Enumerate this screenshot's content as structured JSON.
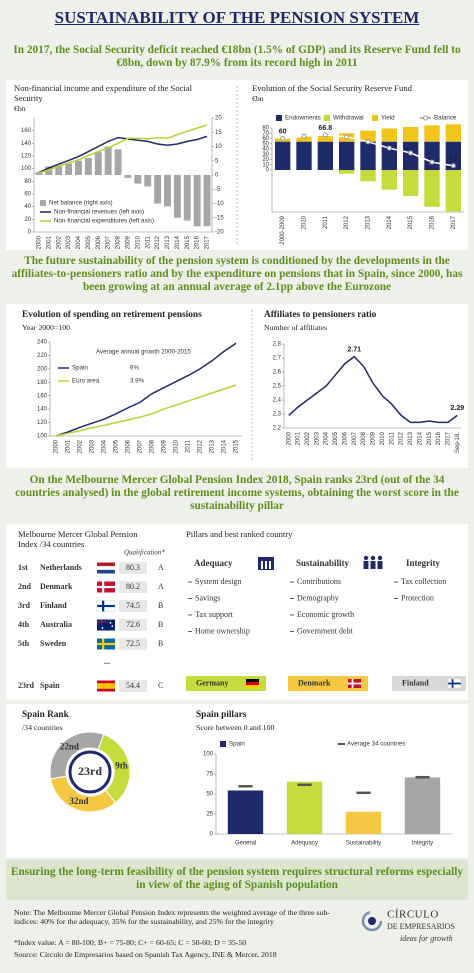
{
  "title": "SUSTAINABILITY OF THE PENSION SYSTEM",
  "intro": "In 2017, the Social Security deficit reached €18bn (1.5% of GDP) and its Reserve Fund fell to €8bn, down by 87.9% from its record high in 2011",
  "section_2": "The future sustainability of the pension system is conditioned by the developments in the affiliates-to-pensioners ratio and by the expenditure on pensions that in Spain, since 2000, has been growing at an annual average of 2.1pp above the Eurozone",
  "section_3": "On the Melbourne Mercer Global Pension Index 2018, Spain ranks 23rd (out of the 34 countries analysed) in the global retirement income systems, obtaining the worst score in the sustainability pillar",
  "chart_data": [
    {
      "type": "combo",
      "title": "Non-financial income and expenditure of the Social Security",
      "subtitle": "€bn",
      "categories": [
        "2000",
        "2001",
        "2002",
        "2003",
        "2004",
        "2005",
        "2006",
        "2007",
        "2008",
        "2009",
        "2010",
        "2011",
        "2012",
        "2013",
        "2014",
        "2015",
        "2016",
        "2017"
      ],
      "ylim": [
        0,
        180
      ],
      "yticks": [
        0,
        20,
        40,
        60,
        80,
        100,
        120,
        140,
        160
      ],
      "y2lim": [
        -20,
        20
      ],
      "y2ticks": [
        -20,
        -15,
        -10,
        -5,
        0,
        5,
        10,
        15,
        20
      ],
      "legend": "lower left",
      "series": [
        {
          "name": "Net balance (right axis)",
          "kind": "bar",
          "axis": "y2",
          "color": "#a6a6a6",
          "values": [
            1,
            3,
            3,
            4,
            5,
            6,
            8,
            10,
            9,
            -1,
            -3,
            -4,
            -10,
            -11,
            -15,
            -16,
            -18,
            -18
          ]
        },
        {
          "name": "Non-financial revenues (left axis)",
          "kind": "line",
          "color": "#1f2a6b",
          "values": [
            94,
            101,
            107,
            113,
            119,
            127,
            135,
            143,
            149,
            147,
            145,
            143,
            139,
            137,
            139,
            143,
            146,
            151
          ]
        },
        {
          "name": "Non-financial expenditures (left axis)",
          "kind": "line",
          "color": "#b5d334",
          "values": [
            93,
            98,
            104,
            109,
            114,
            121,
            127,
            133,
            140,
            148,
            148,
            147,
            149,
            148,
            154,
            159,
            164,
            169
          ]
        }
      ]
    },
    {
      "type": "stacked-bar",
      "title": "Evolution of the Social Security Reserve Fund",
      "subtitle": "€bn",
      "categories": [
        "2000-2009",
        "2010",
        "2011",
        "2012",
        "2013",
        "2014",
        "2015",
        "2016",
        "2017"
      ],
      "ylim": [
        -80,
        80
      ],
      "yticks": [
        0,
        10,
        20,
        30,
        40,
        50,
        60,
        70,
        80
      ],
      "legend": "top",
      "series": [
        {
          "name": "Endowments",
          "kind": "bar",
          "color": "#1f2a6b",
          "values": [
            54,
            54,
            54,
            54,
            54,
            54,
            54,
            54,
            54
          ]
        },
        {
          "name": "Withdrawal",
          "kind": "bar",
          "color": "#c6dc3c",
          "values": [
            0,
            0,
            0,
            -7,
            -21.3,
            -37.4,
            -49.5,
            -70,
            -78.9
          ]
        },
        {
          "name": "Yield",
          "kind": "bar",
          "color": "#f0c419",
          "values": [
            6,
            10.4,
            12.8,
            16,
            21,
            25,
            28,
            31,
            33
          ]
        },
        {
          "name": "Balance",
          "kind": "line",
          "color": "#ffffff",
          "marker_color": "#9a9a9a",
          "values": [
            60,
            64.4,
            66.8,
            63,
            53.7,
            41.6,
            32.5,
            15,
            8.1
          ],
          "value_labels": [
            "60",
            null,
            "66.8",
            null,
            null,
            null,
            null,
            null,
            "8.1"
          ]
        }
      ]
    },
    {
      "type": "line",
      "title": "Evolution of spending on retirement pensions",
      "subtitle": "Year 2000=100",
      "categories": [
        "2000",
        "2001",
        "2002",
        "2003",
        "2004",
        "2005",
        "2006",
        "2007",
        "2008",
        "2009",
        "2010",
        "2011",
        "2012",
        "2013",
        "2014",
        "2015"
      ],
      "ylim": [
        100,
        240
      ],
      "yticks": [
        100,
        120,
        140,
        160,
        180,
        200,
        220,
        240
      ],
      "grid": false,
      "legend": "upper left",
      "legend_title": "Average annual growth 2000-2015",
      "series": [
        {
          "name": "Spain",
          "kind": "line",
          "color": "#1f2a6b",
          "growth": "6%",
          "values": [
            100,
            106,
            113,
            119,
            125,
            133,
            142,
            150,
            163,
            172,
            181,
            190,
            200,
            212,
            226,
            238
          ]
        },
        {
          "name": "Euro area",
          "kind": "line",
          "color": "#b5d334",
          "growth": "3.9%",
          "values": [
            100,
            104,
            108,
            112,
            116,
            120,
            124,
            128,
            133,
            140,
            146,
            152,
            158,
            164,
            170,
            176
          ]
        }
      ]
    },
    {
      "type": "line",
      "title": "Affiliates to pensioners ratio",
      "subtitle": "Number of affiliates",
      "categories": [
        "2000",
        "2001",
        "2002",
        "2003",
        "2004",
        "2005",
        "2006",
        "2007",
        "2008",
        "2009",
        "2010",
        "2011",
        "2012",
        "2013",
        "2014",
        "2015",
        "2016",
        "2017",
        "Sep-18."
      ],
      "ylim": [
        2.2,
        2.8
      ],
      "yticks": [
        {
          "value": 2.2,
          "label": "2,2"
        },
        {
          "value": 2.3,
          "label": "2,3"
        },
        {
          "value": 2.4,
          "label": "2,4"
        },
        {
          "value": 2.5,
          "label": "2,5"
        },
        {
          "value": 2.6,
          "label": "2,6"
        },
        {
          "value": 2.7,
          "label": "2,7"
        },
        {
          "value": 2.8,
          "label": "2,8"
        }
      ],
      "grid": false,
      "series": [
        {
          "name": "Affiliates to pensioners ratio",
          "kind": "line",
          "color": "#1f2a6b",
          "values": [
            2.29,
            2.35,
            2.4,
            2.45,
            2.5,
            2.58,
            2.66,
            2.71,
            2.64,
            2.52,
            2.43,
            2.37,
            2.29,
            2.24,
            2.24,
            2.25,
            2.24,
            2.24,
            2.29
          ],
          "value_labels": [
            null,
            null,
            null,
            null,
            null,
            null,
            null,
            "2.71",
            null,
            null,
            null,
            null,
            null,
            null,
            null,
            null,
            null,
            null,
            "2.29"
          ]
        }
      ]
    },
    {
      "type": "bar",
      "title": "Spain pillars",
      "subtitle": "Score between 0 and 100",
      "categories": [
        "General",
        "Adequacy",
        "Sustainability",
        "Integrity"
      ],
      "ylim": [
        0,
        100
      ],
      "yticks": [
        0,
        25,
        50,
        75,
        100
      ],
      "legend": "top",
      "series": [
        {
          "name": "Spain",
          "kind": "bar",
          "color": "#1f2a6b",
          "colors": [
            "#1f2a6b",
            "#c6dc3c",
            "#f5c843",
            "#a6a6a6"
          ],
          "values": [
            54.4,
            65.4,
            27.9,
            70.8
          ]
        },
        {
          "name": "Average 34 countries",
          "kind": "marker",
          "color": "#555555",
          "values": [
            59.7,
            61.5,
            51.5,
            71
          ]
        }
      ]
    }
  ],
  "mercer_table": {
    "title": "Melbourne Mercer Global Pension Index /34 countries",
    "qualification_header": "Qualification*",
    "rows": [
      {
        "rank": "1st",
        "country": "Netherlands",
        "score": 80.3,
        "grade": "A"
      },
      {
        "rank": "2nd",
        "country": "Denmark",
        "score": 80.2,
        "grade": "A"
      },
      {
        "rank": "3rd",
        "country": "Finland",
        "score": 74.5,
        "grade": "B"
      },
      {
        "rank": "4th",
        "country": "Australia",
        "score": 72.6,
        "grade": "B"
      },
      {
        "rank": "5th",
        "country": "Sweden",
        "score": 72.5,
        "grade": "B"
      }
    ],
    "ellipsis": "...",
    "spain": {
      "rank": "23rd",
      "country": "Spain",
      "score": 54.4,
      "grade": "C"
    }
  },
  "pillars": {
    "title": "Pillars and best ranked country",
    "columns": [
      {
        "name": "Adequacy",
        "items": [
          "System design",
          "Savings",
          "Tax support",
          "Home ownership"
        ],
        "best": "Germany"
      },
      {
        "name": "Sustainability",
        "items": [
          "Contributions",
          "Demography",
          "Economic growth",
          "Government debt"
        ],
        "best": "Denmark"
      },
      {
        "name": "Integrity",
        "items": [
          "Tax collection",
          "Protection"
        ],
        "best": "Finland"
      }
    ]
  },
  "spain_rank": {
    "title": "Spain Rank",
    "subtitle": "/34 countries",
    "overall": "23rd",
    "pillars": [
      "9th",
      "32nd",
      "22nd"
    ]
  },
  "conclusion": "Ensuring the long-term feasibility of the pension system requires structural reforms especially in view of the aging of Spanish population",
  "notes": {
    "note": "Note: The Melbourne Mercer Global Pension Index represents the weighted average of the three sub-indices: 40% for the adequacy, 35% for the sustainability, and 25% for the integrity",
    "index": "*Index value: A = 80-100; B+ = 75-80; C+ = 60-65; C = 50-60; D = 35-50",
    "source": "Source: Círculo de Empresarios based on Spanish Tax Agency, INE & Mercer, 2018"
  },
  "logo": {
    "name": "CÍRCULO",
    "name_2": "DE EMPRESARIOS",
    "tagline": "ideas for growth"
  }
}
